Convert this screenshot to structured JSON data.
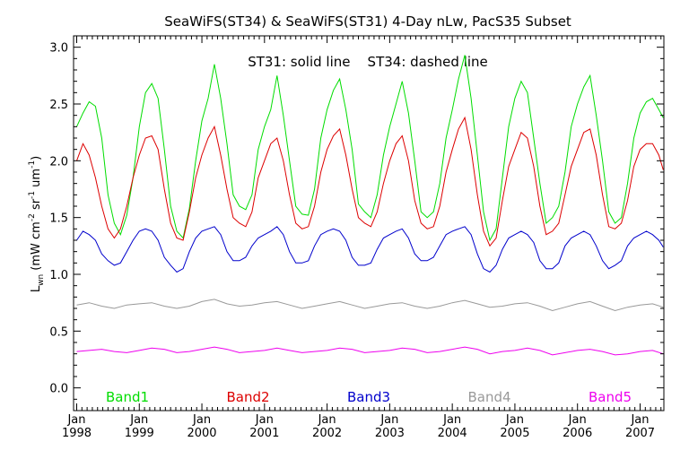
{
  "chart_data": {
    "type": "line",
    "title": "SeaWiFS(ST34) & SeaWiFS(ST31) 4-Day nLw, PacS35 Subset",
    "annotation": "ST31: solid line    ST34: dashed line",
    "ylabel": {
      "base": "L",
      "base_sub": "wn",
      "open": " (mW cm",
      "sup1": "-2",
      "mid": " sr",
      "sup2": "-1",
      "mid2": " um",
      "sup3": "-1",
      "close": ")"
    },
    "xlim": [
      1997.95,
      2007.38
    ],
    "ylim": [
      -0.2,
      3.1
    ],
    "yticks": [
      "0.0",
      "0.5",
      "1.0",
      "1.5",
      "2.0",
      "2.5",
      "3.0"
    ],
    "ytick_values": [
      0.0,
      0.5,
      1.0,
      1.5,
      2.0,
      2.5,
      3.0
    ],
    "xticks": [
      {
        "value": 1998.0,
        "month": "Jan",
        "year": "1998"
      },
      {
        "value": 1999.0,
        "month": "Jan",
        "year": "1999"
      },
      {
        "value": 2000.0,
        "month": "Jan",
        "year": "2000"
      },
      {
        "value": 2001.0,
        "month": "Jan",
        "year": "2001"
      },
      {
        "value": 2002.0,
        "month": "Jan",
        "year": "2002"
      },
      {
        "value": 2003.0,
        "month": "Jan",
        "year": "2003"
      },
      {
        "value": 2004.0,
        "month": "Jan",
        "year": "2004"
      },
      {
        "value": 2005.0,
        "month": "Jan",
        "year": "2005"
      },
      {
        "value": 2006.0,
        "month": "Jan",
        "year": "2006"
      },
      {
        "value": 2007.0,
        "month": "Jan",
        "year": "2007"
      }
    ],
    "legend_position": "bottom",
    "series": [
      {
        "name": "Band1",
        "color": "#00dd00",
        "x": [
          1998.0,
          1998.1,
          1998.2,
          1998.3,
          1998.4,
          1998.5,
          1998.6,
          1998.7,
          1998.8,
          1998.9,
          1999.0,
          1999.1,
          1999.2,
          1999.3,
          1999.4,
          1999.5,
          1999.6,
          1999.7,
          1999.8,
          1999.9,
          2000.0,
          2000.1,
          2000.2,
          2000.3,
          2000.4,
          2000.5,
          2000.6,
          2000.7,
          2000.8,
          2000.9,
          2001.0,
          2001.1,
          2001.2,
          2001.3,
          2001.4,
          2001.5,
          2001.6,
          2001.7,
          2001.8,
          2001.9,
          2002.0,
          2002.1,
          2002.2,
          2002.3,
          2002.4,
          2002.5,
          2002.6,
          2002.7,
          2002.8,
          2002.9,
          2003.0,
          2003.1,
          2003.2,
          2003.3,
          2003.4,
          2003.5,
          2003.6,
          2003.7,
          2003.8,
          2003.9,
          2004.0,
          2004.1,
          2004.2,
          2004.3,
          2004.4,
          2004.5,
          2004.6,
          2004.7,
          2004.8,
          2004.9,
          2005.0,
          2005.1,
          2005.2,
          2005.3,
          2005.4,
          2005.5,
          2005.6,
          2005.7,
          2005.8,
          2005.9,
          2006.0,
          2006.1,
          2006.2,
          2006.3,
          2006.4,
          2006.5,
          2006.6,
          2006.7,
          2006.8,
          2006.9,
          2007.0,
          2007.1,
          2007.2,
          2007.3,
          2007.37
        ],
        "values": [
          2.3,
          2.42,
          2.52,
          2.48,
          2.2,
          1.7,
          1.45,
          1.35,
          1.52,
          1.85,
          2.3,
          2.6,
          2.68,
          2.55,
          2.1,
          1.6,
          1.38,
          1.32,
          1.58,
          2.0,
          2.35,
          2.55,
          2.85,
          2.55,
          2.15,
          1.7,
          1.6,
          1.57,
          1.7,
          2.1,
          2.3,
          2.45,
          2.75,
          2.4,
          2.0,
          1.6,
          1.53,
          1.52,
          1.75,
          2.2,
          2.45,
          2.62,
          2.72,
          2.45,
          2.1,
          1.62,
          1.55,
          1.5,
          1.7,
          2.05,
          2.3,
          2.5,
          2.7,
          2.42,
          2.0,
          1.55,
          1.5,
          1.55,
          1.8,
          2.2,
          2.45,
          2.72,
          2.93,
          2.55,
          2.05,
          1.55,
          1.3,
          1.4,
          1.85,
          2.3,
          2.55,
          2.7,
          2.6,
          2.2,
          1.8,
          1.45,
          1.5,
          1.6,
          1.9,
          2.3,
          2.5,
          2.65,
          2.75,
          2.4,
          2.0,
          1.55,
          1.45,
          1.5,
          1.8,
          2.2,
          2.42,
          2.52,
          2.55,
          2.45,
          2.38
        ]
      },
      {
        "name": "Band2",
        "color": "#dd0000",
        "x": [
          1998.0,
          1998.1,
          1998.2,
          1998.3,
          1998.4,
          1998.5,
          1998.6,
          1998.7,
          1998.8,
          1998.9,
          1999.0,
          1999.1,
          1999.2,
          1999.3,
          1999.4,
          1999.5,
          1999.6,
          1999.7,
          1999.8,
          1999.9,
          2000.0,
          2000.1,
          2000.2,
          2000.3,
          2000.4,
          2000.5,
          2000.6,
          2000.7,
          2000.8,
          2000.9,
          2001.0,
          2001.1,
          2001.2,
          2001.3,
          2001.4,
          2001.5,
          2001.6,
          2001.7,
          2001.8,
          2001.9,
          2002.0,
          2002.1,
          2002.2,
          2002.3,
          2002.4,
          2002.5,
          2002.6,
          2002.7,
          2002.8,
          2002.9,
          2003.0,
          2003.1,
          2003.2,
          2003.3,
          2003.4,
          2003.5,
          2003.6,
          2003.7,
          2003.8,
          2003.9,
          2004.0,
          2004.1,
          2004.2,
          2004.3,
          2004.4,
          2004.5,
          2004.6,
          2004.7,
          2004.8,
          2004.9,
          2005.0,
          2005.1,
          2005.2,
          2005.3,
          2005.4,
          2005.5,
          2005.6,
          2005.7,
          2005.8,
          2005.9,
          2006.0,
          2006.1,
          2006.2,
          2006.3,
          2006.4,
          2006.5,
          2006.6,
          2006.7,
          2006.8,
          2006.9,
          2007.0,
          2007.1,
          2007.2,
          2007.3,
          2007.37
        ],
        "values": [
          2.0,
          2.15,
          2.05,
          1.85,
          1.6,
          1.4,
          1.32,
          1.4,
          1.6,
          1.85,
          2.05,
          2.2,
          2.22,
          2.1,
          1.75,
          1.45,
          1.32,
          1.3,
          1.55,
          1.85,
          2.05,
          2.2,
          2.3,
          2.05,
          1.75,
          1.5,
          1.45,
          1.42,
          1.55,
          1.85,
          2.0,
          2.15,
          2.2,
          2.0,
          1.7,
          1.45,
          1.4,
          1.42,
          1.6,
          1.9,
          2.1,
          2.22,
          2.28,
          2.05,
          1.75,
          1.5,
          1.45,
          1.42,
          1.55,
          1.8,
          2.0,
          2.15,
          2.22,
          2.0,
          1.65,
          1.45,
          1.4,
          1.42,
          1.6,
          1.9,
          2.1,
          2.28,
          2.38,
          2.1,
          1.7,
          1.38,
          1.25,
          1.32,
          1.65,
          1.95,
          2.1,
          2.25,
          2.2,
          1.95,
          1.6,
          1.35,
          1.38,
          1.45,
          1.7,
          1.95,
          2.1,
          2.25,
          2.28,
          2.05,
          1.7,
          1.42,
          1.4,
          1.45,
          1.65,
          1.95,
          2.1,
          2.15,
          2.15,
          2.05,
          1.92
        ]
      },
      {
        "name": "Band3",
        "color": "#0000cc",
        "x": [
          1998.0,
          1998.1,
          1998.2,
          1998.3,
          1998.4,
          1998.5,
          1998.6,
          1998.7,
          1998.8,
          1998.9,
          1999.0,
          1999.1,
          1999.2,
          1999.3,
          1999.4,
          1999.5,
          1999.6,
          1999.7,
          1999.8,
          1999.9,
          2000.0,
          2000.1,
          2000.2,
          2000.3,
          2000.4,
          2000.5,
          2000.6,
          2000.7,
          2000.8,
          2000.9,
          2001.0,
          2001.1,
          2001.2,
          2001.3,
          2001.4,
          2001.5,
          2001.6,
          2001.7,
          2001.8,
          2001.9,
          2002.0,
          2002.1,
          2002.2,
          2002.3,
          2002.4,
          2002.5,
          2002.6,
          2002.7,
          2002.8,
          2002.9,
          2003.0,
          2003.1,
          2003.2,
          2003.3,
          2003.4,
          2003.5,
          2003.6,
          2003.7,
          2003.8,
          2003.9,
          2004.0,
          2004.1,
          2004.2,
          2004.3,
          2004.4,
          2004.5,
          2004.6,
          2004.7,
          2004.8,
          2004.9,
          2005.0,
          2005.1,
          2005.2,
          2005.3,
          2005.4,
          2005.5,
          2005.6,
          2005.7,
          2005.8,
          2005.9,
          2006.0,
          2006.1,
          2006.2,
          2006.3,
          2006.4,
          2006.5,
          2006.6,
          2006.7,
          2006.8,
          2006.9,
          2007.0,
          2007.1,
          2007.2,
          2007.3,
          2007.37
        ],
        "values": [
          1.3,
          1.38,
          1.35,
          1.3,
          1.18,
          1.12,
          1.08,
          1.1,
          1.2,
          1.3,
          1.38,
          1.4,
          1.38,
          1.3,
          1.15,
          1.08,
          1.02,
          1.05,
          1.2,
          1.32,
          1.38,
          1.4,
          1.42,
          1.35,
          1.2,
          1.12,
          1.12,
          1.15,
          1.25,
          1.32,
          1.35,
          1.38,
          1.42,
          1.35,
          1.2,
          1.1,
          1.1,
          1.12,
          1.25,
          1.35,
          1.38,
          1.4,
          1.38,
          1.3,
          1.15,
          1.08,
          1.08,
          1.1,
          1.22,
          1.32,
          1.35,
          1.38,
          1.4,
          1.32,
          1.18,
          1.12,
          1.12,
          1.15,
          1.25,
          1.35,
          1.38,
          1.4,
          1.42,
          1.35,
          1.18,
          1.05,
          1.02,
          1.08,
          1.22,
          1.32,
          1.35,
          1.38,
          1.35,
          1.28,
          1.12,
          1.05,
          1.05,
          1.1,
          1.25,
          1.32,
          1.35,
          1.38,
          1.35,
          1.25,
          1.12,
          1.05,
          1.08,
          1.12,
          1.25,
          1.32,
          1.35,
          1.38,
          1.35,
          1.3,
          1.24
        ]
      },
      {
        "name": "Band4",
        "color": "#999999",
        "x": [
          1998.0,
          1998.2,
          1998.4,
          1998.6,
          1998.8,
          1999.0,
          1999.2,
          1999.4,
          1999.6,
          1999.8,
          2000.0,
          2000.2,
          2000.4,
          2000.6,
          2000.8,
          2001.0,
          2001.2,
          2001.4,
          2001.6,
          2001.8,
          2002.0,
          2002.2,
          2002.4,
          2002.6,
          2002.8,
          2003.0,
          2003.2,
          2003.4,
          2003.6,
          2003.8,
          2004.0,
          2004.2,
          2004.4,
          2004.6,
          2004.8,
          2005.0,
          2005.2,
          2005.4,
          2005.6,
          2005.8,
          2006.0,
          2006.2,
          2006.4,
          2006.6,
          2006.8,
          2007.0,
          2007.2,
          2007.37
        ],
        "values": [
          0.73,
          0.75,
          0.72,
          0.7,
          0.73,
          0.74,
          0.75,
          0.72,
          0.7,
          0.72,
          0.76,
          0.78,
          0.74,
          0.72,
          0.73,
          0.75,
          0.76,
          0.73,
          0.7,
          0.72,
          0.74,
          0.76,
          0.73,
          0.7,
          0.72,
          0.74,
          0.75,
          0.72,
          0.7,
          0.72,
          0.75,
          0.77,
          0.74,
          0.71,
          0.72,
          0.74,
          0.75,
          0.72,
          0.68,
          0.71,
          0.74,
          0.76,
          0.72,
          0.68,
          0.71,
          0.73,
          0.74,
          0.71
        ]
      },
      {
        "name": "Band5",
        "color": "#ee00ee",
        "x": [
          1998.0,
          1998.2,
          1998.4,
          1998.6,
          1998.8,
          1999.0,
          1999.2,
          1999.4,
          1999.6,
          1999.8,
          2000.0,
          2000.2,
          2000.4,
          2000.6,
          2000.8,
          2001.0,
          2001.2,
          2001.4,
          2001.6,
          2001.8,
          2002.0,
          2002.2,
          2002.4,
          2002.6,
          2002.8,
          2003.0,
          2003.2,
          2003.4,
          2003.6,
          2003.8,
          2004.0,
          2004.2,
          2004.4,
          2004.6,
          2004.8,
          2005.0,
          2005.2,
          2005.4,
          2005.6,
          2005.8,
          2006.0,
          2006.2,
          2006.4,
          2006.6,
          2006.8,
          2007.0,
          2007.2,
          2007.37
        ],
        "values": [
          0.32,
          0.33,
          0.34,
          0.32,
          0.31,
          0.33,
          0.35,
          0.34,
          0.31,
          0.32,
          0.34,
          0.36,
          0.34,
          0.31,
          0.32,
          0.33,
          0.35,
          0.33,
          0.31,
          0.32,
          0.33,
          0.35,
          0.34,
          0.31,
          0.32,
          0.33,
          0.35,
          0.34,
          0.31,
          0.32,
          0.34,
          0.36,
          0.34,
          0.3,
          0.32,
          0.33,
          0.35,
          0.33,
          0.29,
          0.31,
          0.33,
          0.34,
          0.32,
          0.29,
          0.3,
          0.32,
          0.33,
          0.3
        ]
      }
    ]
  }
}
